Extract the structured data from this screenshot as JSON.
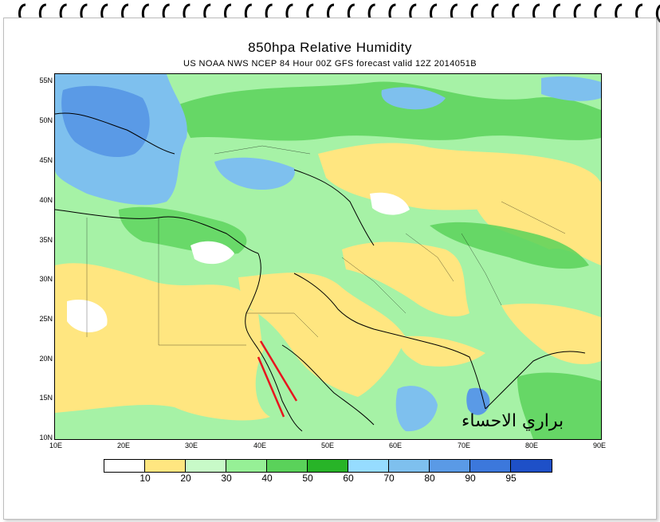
{
  "title": "850hpa Relative Humidity",
  "subtitle": "US NOAA NWS NCEP 84 Hour 00Z GFS forecast valid 12Z 2014051B",
  "watermark": "براري الاحساء",
  "axes": {
    "y_ticks": [
      "55N",
      "50N",
      "45N",
      "40N",
      "35N",
      "30N",
      "25N",
      "20N",
      "15N",
      "10N"
    ],
    "x_ticks": [
      "10E",
      "20E",
      "30E",
      "40E",
      "50E",
      "60E",
      "70E",
      "80E",
      "90E"
    ]
  },
  "legend": {
    "labels": [
      "10",
      "20",
      "30",
      "40",
      "50",
      "60",
      "70",
      "80",
      "90",
      "95"
    ],
    "colors": [
      "#ffffff",
      "#ffe680",
      "#c8fac8",
      "#96f096",
      "#5ad25a",
      "#28b428",
      "#96dcff",
      "#7ec0ee",
      "#5a9ae6",
      "#3c78dc",
      "#1e50c8"
    ]
  },
  "colors": {
    "dry": "#ffe680",
    "moist": "#a6f2a6",
    "wet": "#5ad25a",
    "very_wet": "#7ec0ee",
    "annotation_line": "#e8141e"
  }
}
